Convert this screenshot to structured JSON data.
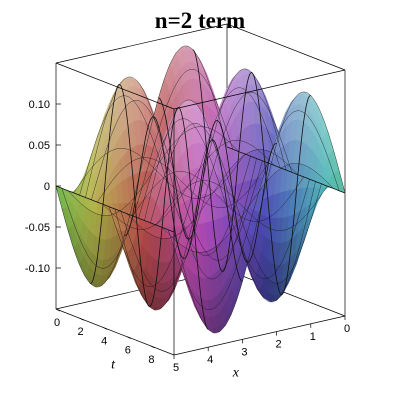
{
  "chart_data": {
    "type": "surface3d",
    "title": "n=2 term",
    "xlabel": "x",
    "ylabel": "t",
    "zlabel": "",
    "x_range": [
      0,
      5
    ],
    "t_range": [
      0,
      10
    ],
    "z_range": [
      -0.15,
      0.15
    ],
    "x_ticks": [
      "0",
      "1",
      "2",
      "3",
      "4",
      "5"
    ],
    "t_ticks": [
      "0",
      "2",
      "4",
      "6",
      "8"
    ],
    "z_ticks": [
      "0.10",
      "0.05",
      "0",
      "-0.05",
      "-0.10"
    ],
    "z_tick_values": [
      0.1,
      0.05,
      0,
      -0.05,
      -0.1
    ],
    "function": "0.135 * sin(2*pi*x/5) * cos(2*pi*t/5)",
    "amplitude": 0.135,
    "box": true,
    "colormap": "multicolor (red-magenta-blue-cyan-green-yellow)"
  }
}
